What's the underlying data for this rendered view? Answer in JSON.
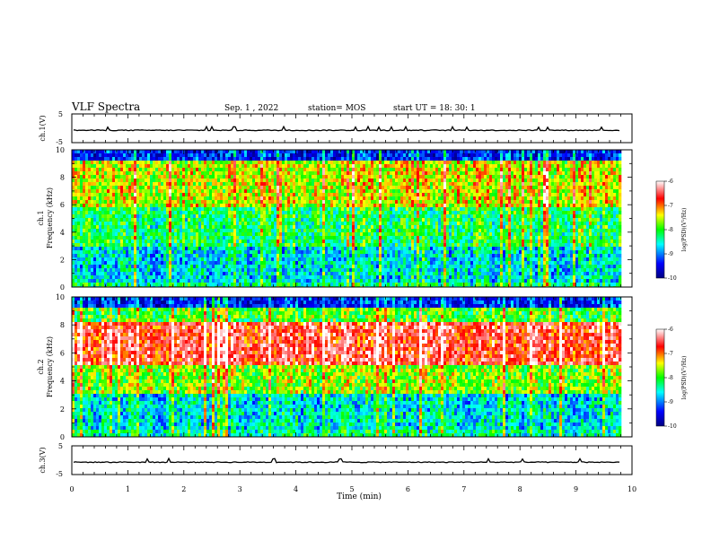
{
  "header": {
    "title": "VLF Spectra",
    "date": "Sep. 1 , 2022",
    "station": "station= MOS",
    "start": "start UT = 18: 30: 1"
  },
  "chart_data": [
    {
      "type": "line",
      "name": "ch1-waveform",
      "ylabel": "ch.1(V)",
      "ylim": [
        -5,
        5
      ],
      "yticks": [
        "5",
        "-5"
      ],
      "xlim": [
        0,
        10
      ],
      "baseline": -0.7
    },
    {
      "type": "heatmap",
      "name": "ch1-spectrogram",
      "ylabel": "ch.1\nFrequency (kHz)",
      "ylim": [
        0,
        10
      ],
      "yticks": [
        "0",
        "2",
        "4",
        "6",
        "8",
        "10"
      ],
      "xlim": [
        0,
        10
      ],
      "data_end_min": 9.8,
      "colorbar": {
        "label": "log(PSD)(V²/Hz)",
        "range": [
          -10,
          -6
        ],
        "ticks": [
          "-6",
          "-7",
          "-8",
          "-9",
          "-10"
        ]
      }
    },
    {
      "type": "heatmap",
      "name": "ch2-spectrogram",
      "ylabel": "ch.2\nFrequency (kHz)",
      "ylim": [
        0,
        10
      ],
      "yticks": [
        "0",
        "2",
        "4",
        "6",
        "8",
        "10"
      ],
      "xlim": [
        0,
        10
      ],
      "data_end_min": 9.8,
      "colorbar": {
        "label": "log(PSD)(V²/Hz)",
        "range": [
          -10,
          -6
        ],
        "ticks": [
          "-6",
          "-7",
          "-8",
          "-9",
          "-10"
        ]
      }
    },
    {
      "type": "line",
      "name": "ch3-waveform",
      "ylabel": "ch.3(V)",
      "ylim": [
        -5,
        5
      ],
      "yticks": [
        "5",
        "-5"
      ],
      "xlim": [
        0,
        10
      ],
      "baseline": -0.7
    }
  ],
  "xaxis": {
    "label": "Time (min)",
    "ticks": [
      "0",
      "1",
      "2",
      "3",
      "4",
      "5",
      "6",
      "7",
      "8",
      "9",
      "10"
    ]
  },
  "colors": {
    "colormap": [
      "#000080",
      "#0000ff",
      "#00ffff",
      "#00ff00",
      "#ffff00",
      "#ff0000",
      "#ffffff"
    ]
  }
}
